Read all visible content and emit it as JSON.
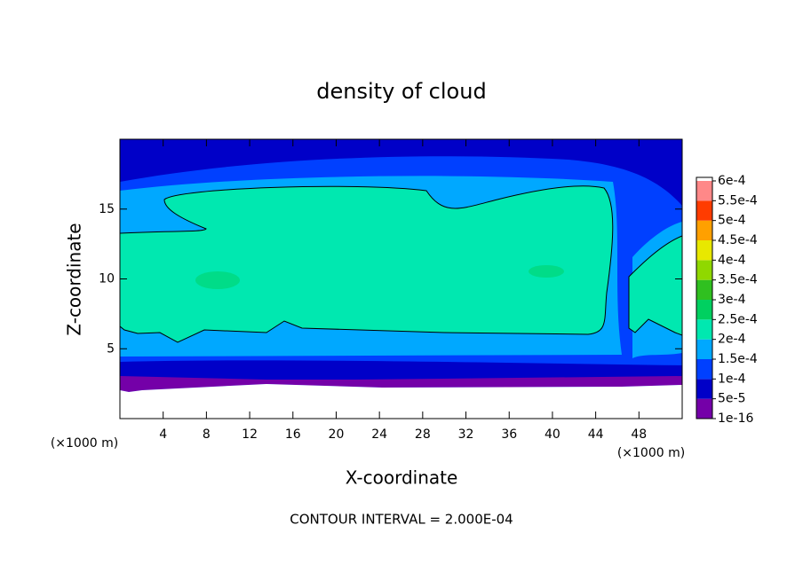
{
  "chart_data": {
    "type": "contour",
    "title": "density of cloud",
    "x_label": "X-coordinate",
    "y_label": "Z-coordinate",
    "x_unit_label": "(×1000 m)",
    "x_unit_label_right": "(×1000 m)",
    "footer": "CONTOUR INTERVAL = 2.000E-04",
    "xlim": [
      0,
      52
    ],
    "ylim": [
      0,
      20
    ],
    "xticks": [
      4,
      8,
      12,
      16,
      20,
      24,
      28,
      32,
      36,
      40,
      44,
      48
    ],
    "yticks": [
      5,
      10,
      15
    ],
    "contour_color": "#000000",
    "colorbar": {
      "ticks": [
        {
          "value": 1e-16,
          "label": "1e-16"
        },
        {
          "value": 5e-05,
          "label": "5e-5"
        },
        {
          "value": 0.0001,
          "label": "1e-4"
        },
        {
          "value": 0.00015,
          "label": "1.5e-4"
        },
        {
          "value": 0.0002,
          "label": "2e-4"
        },
        {
          "value": 0.00025,
          "label": "2.5e-4"
        },
        {
          "value": 0.0003,
          "label": "3e-4"
        },
        {
          "value": 0.00035,
          "label": "3.5e-4"
        },
        {
          "value": 0.0004,
          "label": "4e-4"
        },
        {
          "value": 0.00045,
          "label": "4.5e-4"
        },
        {
          "value": 0.0005,
          "label": "5e-4"
        },
        {
          "value": 0.00055,
          "label": "5.5e-4"
        },
        {
          "value": 0.0006,
          "label": "6e-4"
        }
      ],
      "colors": [
        "#7400a8",
        "#0000c8",
        "#0040ff",
        "#00a8ff",
        "#00e8b0",
        "#00d060",
        "#30c020",
        "#90d800",
        "#e8e800",
        "#ffa000",
        "#ff3c00",
        "#ff8888"
      ]
    }
  }
}
